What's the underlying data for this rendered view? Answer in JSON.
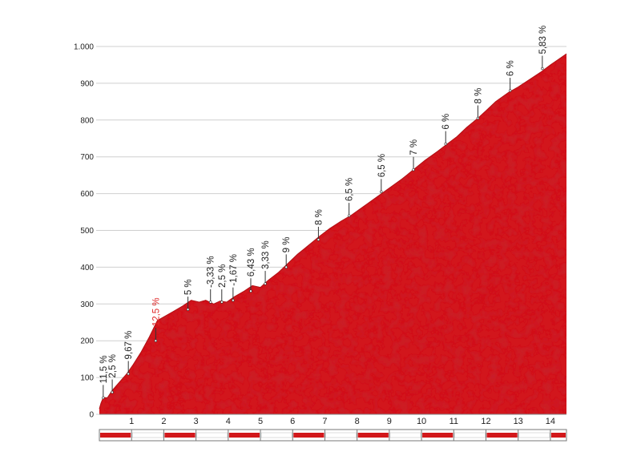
{
  "chart_data": {
    "type": "area",
    "title": "",
    "xlabel": "",
    "ylabel": "",
    "xlim": [
      0,
      14.5
    ],
    "ylim": [
      0,
      1000
    ],
    "y_ticks": [
      0,
      100,
      200,
      300,
      400,
      500,
      600,
      700,
      800,
      900,
      1000
    ],
    "y_tick_labels": [
      "0",
      "100",
      "200",
      "300",
      "400",
      "500",
      "600",
      "700",
      "800",
      "900",
      "1.000"
    ],
    "x_ticks": [
      1,
      2,
      3,
      4,
      5,
      6,
      7,
      8,
      9,
      10,
      11,
      12,
      13,
      14
    ],
    "x_tick_labels": [
      "1",
      "2",
      "3",
      "4",
      "5",
      "6",
      "7",
      "8",
      "9",
      "10",
      "11",
      "12",
      "13",
      "14"
    ],
    "grid": true,
    "fill_color": "#d2181b",
    "highlight_color": "#e02a2a",
    "profile": {
      "x": [
        0,
        0.05,
        0.12,
        0.25,
        0.4,
        0.6,
        0.85,
        1.05,
        1.3,
        1.55,
        1.8,
        2.0,
        2.3,
        2.6,
        2.85,
        3.1,
        3.3,
        3.55,
        3.75,
        3.95,
        4.2,
        4.5,
        4.75,
        5.0,
        5.25,
        5.55,
        5.85,
        6.15,
        6.5,
        6.85,
        7.15,
        7.5,
        7.8,
        8.2,
        8.6,
        9.0,
        9.4,
        9.75,
        10.1,
        10.5,
        10.8,
        11.1,
        11.4,
        11.75,
        12.0,
        12.3,
        12.7,
        13.0,
        13.35,
        13.7,
        14.0,
        14.25,
        14.5
      ],
      "y": [
        15,
        30,
        45,
        45,
        65,
        85,
        110,
        135,
        170,
        210,
        255,
        265,
        280,
        295,
        310,
        305,
        310,
        300,
        308,
        305,
        320,
        335,
        350,
        345,
        365,
        385,
        410,
        435,
        460,
        485,
        505,
        525,
        540,
        565,
        590,
        615,
        640,
        665,
        690,
        715,
        735,
        755,
        780,
        805,
        825,
        850,
        875,
        890,
        910,
        930,
        950,
        965,
        980
      ]
    },
    "annotations": [
      {
        "label": "11,5 %",
        "x": 0.12,
        "y": 45,
        "color": "#222222"
      },
      {
        "label": "2,5 %",
        "x": 0.4,
        "y": 60,
        "color": "#222222"
      },
      {
        "label": "9,67 %",
        "x": 0.9,
        "y": 110,
        "color": "#222222"
      },
      {
        "label": "12,5 %",
        "x": 1.75,
        "y": 200,
        "color": "#e02a2a"
      },
      {
        "label": "5 %",
        "x": 2.75,
        "y": 285,
        "color": "#222222"
      },
      {
        "label": "-3,33 %",
        "x": 3.45,
        "y": 305,
        "color": "#222222"
      },
      {
        "label": "2,5 %",
        "x": 3.8,
        "y": 305,
        "color": "#222222"
      },
      {
        "label": "-1,67 %",
        "x": 4.15,
        "y": 310,
        "color": "#222222"
      },
      {
        "label": "6,43 %",
        "x": 4.7,
        "y": 335,
        "color": "#222222"
      },
      {
        "label": "3,33 %",
        "x": 5.15,
        "y": 355,
        "color": "#222222"
      },
      {
        "label": "9 %",
        "x": 5.8,
        "y": 400,
        "color": "#222222"
      },
      {
        "label": "8 %",
        "x": 6.8,
        "y": 475,
        "color": "#222222"
      },
      {
        "label": "6,5 %",
        "x": 7.75,
        "y": 540,
        "color": "#222222"
      },
      {
        "label": "6,5 %",
        "x": 8.75,
        "y": 605,
        "color": "#222222"
      },
      {
        "label": "7 %",
        "x": 9.75,
        "y": 665,
        "color": "#222222"
      },
      {
        "label": "6 %",
        "x": 10.75,
        "y": 735,
        "color": "#222222"
      },
      {
        "label": "8 %",
        "x": 11.75,
        "y": 805,
        "color": "#222222"
      },
      {
        "label": "6 %",
        "x": 12.75,
        "y": 880,
        "color": "#222222"
      },
      {
        "label": "5,83 %",
        "x": 13.75,
        "y": 940,
        "color": "#222222"
      }
    ]
  }
}
